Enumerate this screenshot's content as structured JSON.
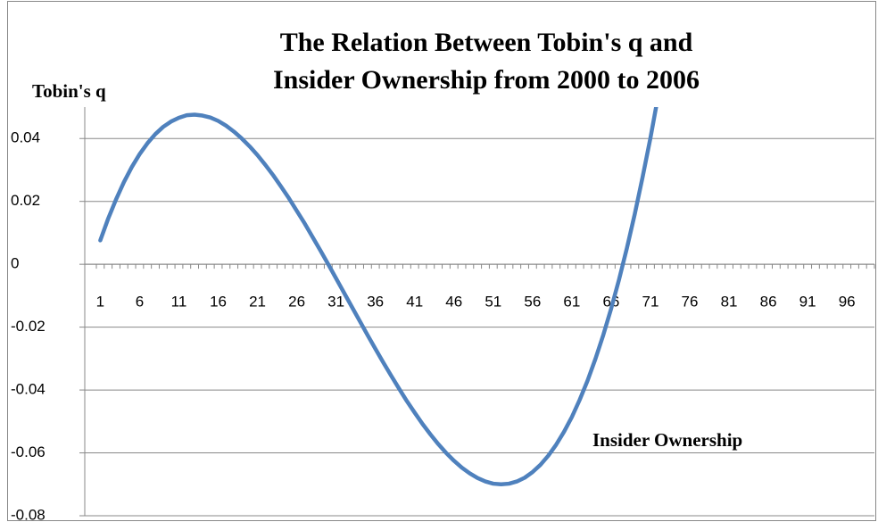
{
  "chart_data": {
    "type": "line",
    "title": [
      "The Relation Between Tobin's q and",
      "Insider Ownership from 2000 to 2006"
    ],
    "y_label": "Tobin's q",
    "x_label": "Insider Ownership",
    "color": "#4f81bd",
    "ylim": [
      -0.08,
      0.05
    ],
    "yticks": [
      -0.08,
      -0.06,
      -0.04,
      -0.02,
      0,
      0.02,
      0.04
    ],
    "grid": true,
    "categories": [
      1,
      null,
      null,
      null,
      null,
      6,
      null,
      null,
      null,
      null,
      11,
      null,
      null,
      null,
      null,
      16,
      null,
      null,
      null,
      null,
      21,
      null,
      null,
      null,
      null,
      26,
      null,
      null,
      null,
      null,
      31,
      null,
      null,
      null,
      null,
      36,
      null,
      null,
      null,
      null,
      41,
      null,
      null,
      null,
      null,
      46,
      null,
      null,
      null,
      null,
      51,
      null,
      null,
      null,
      null,
      56,
      null,
      null,
      null,
      null,
      61,
      null,
      null,
      null,
      null,
      66,
      null,
      null,
      null,
      null,
      71,
      null,
      null,
      null,
      null,
      76,
      null,
      null,
      null,
      null,
      81,
      null,
      null,
      null,
      null,
      86,
      null,
      null,
      null,
      null,
      91,
      null,
      null,
      null,
      null,
      96,
      null,
      null,
      null
    ],
    "values": [
      0.0076,
      0.0145,
      0.0206,
      0.0261,
      0.0309,
      0.035,
      0.0385,
      0.0414,
      0.0437,
      0.0454,
      0.0466,
      0.0474,
      0.0476,
      0.0473,
      0.0467,
      0.0456,
      0.0441,
      0.0422,
      0.04,
      0.0375,
      0.0347,
      0.0316,
      0.0283,
      0.0247,
      0.021,
      0.017,
      0.013,
      0.0087,
      0.0044,
      0,
      -0.0045,
      -0.009,
      -0.0135,
      -0.018,
      -0.0225,
      -0.0269,
      -0.0312,
      -0.0354,
      -0.0395,
      -0.0435,
      -0.0472,
      -0.0508,
      -0.0541,
      -0.0572,
      -0.06,
      -0.0625,
      -0.0647,
      -0.0665,
      -0.068,
      -0.0691,
      -0.0698,
      -0.07,
      -0.0698,
      -0.0691,
      -0.0679,
      -0.0661,
      -0.0638,
      -0.0609,
      -0.0574,
      -0.0533,
      -0.0486,
      -0.0431,
      -0.037,
      -0.0301,
      -0.0225,
      -0.0141,
      -0.0049,
      0.0051,
      0.0159,
      0.0277,
      0.0402,
      0.0538,
      null,
      null,
      null,
      null,
      null,
      null,
      null,
      null,
      null,
      null,
      null,
      null,
      null,
      null,
      null,
      null,
      null,
      null,
      null,
      null,
      null,
      null,
      null,
      null,
      null,
      null,
      null
    ]
  }
}
